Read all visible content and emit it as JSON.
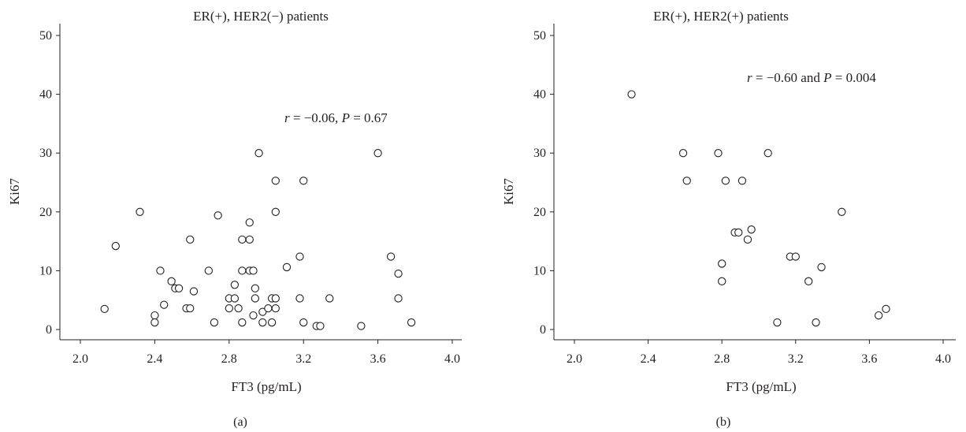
{
  "chart_data": [
    {
      "type": "scatter",
      "title": "ER(+), HER2(−) patients",
      "xlabel": "FT3 (pg/mL)",
      "ylabel": "Ki67",
      "panel_label": "(a)",
      "annotation": {
        "r": "r",
        "r_value": " = −0.06, ",
        "p": "P",
        "p_value": " = 0.67"
      },
      "xlim": [
        1.9,
        4.15
      ],
      "ylim": [
        -2,
        52
      ],
      "xticks": [
        2.0,
        2.4,
        2.8,
        3.2,
        3.6,
        4.0
      ],
      "xtick_labels": [
        "2.0",
        "2.4",
        "2.8",
        "3.2",
        "3.6",
        "4.0"
      ],
      "yticks": [
        0,
        10,
        20,
        30,
        40,
        50
      ],
      "ytick_labels": [
        "0",
        "10",
        "20",
        "30",
        "40",
        "50"
      ],
      "grid": false,
      "points": [
        [
          2.13,
          3.5
        ],
        [
          2.19,
          14.2
        ],
        [
          2.32,
          20
        ],
        [
          2.4,
          2.4
        ],
        [
          2.4,
          1.2
        ],
        [
          2.43,
          10
        ],
        [
          2.45,
          4.2
        ],
        [
          2.49,
          8.2
        ],
        [
          2.51,
          7
        ],
        [
          2.53,
          7
        ],
        [
          2.57,
          3.6
        ],
        [
          2.59,
          3.6
        ],
        [
          2.59,
          15.3
        ],
        [
          2.61,
          6.5
        ],
        [
          2.69,
          10
        ],
        [
          2.72,
          1.2
        ],
        [
          2.74,
          19.4
        ],
        [
          2.8,
          3.6
        ],
        [
          2.8,
          5.3
        ],
        [
          2.83,
          5.3
        ],
        [
          2.83,
          7.6
        ],
        [
          2.85,
          3.6
        ],
        [
          2.87,
          10
        ],
        [
          2.87,
          15.3
        ],
        [
          2.87,
          1.2
        ],
        [
          2.91,
          18.2
        ],
        [
          2.91,
          15.3
        ],
        [
          2.91,
          10
        ],
        [
          2.93,
          10
        ],
        [
          2.93,
          2.4
        ],
        [
          2.94,
          5.3
        ],
        [
          2.94,
          7
        ],
        [
          2.96,
          30
        ],
        [
          2.98,
          3
        ],
        [
          2.98,
          1.2
        ],
        [
          3.01,
          3.6
        ],
        [
          3.03,
          1.2
        ],
        [
          3.03,
          5.3
        ],
        [
          3.05,
          5.3
        ],
        [
          3.05,
          3.6
        ],
        [
          3.05,
          20
        ],
        [
          3.05,
          25.3
        ],
        [
          3.11,
          10.6
        ],
        [
          3.18,
          5.3
        ],
        [
          3.18,
          12.4
        ],
        [
          3.2,
          25.3
        ],
        [
          3.2,
          1.2
        ],
        [
          3.27,
          0.6
        ],
        [
          3.29,
          0.6
        ],
        [
          3.34,
          5.3
        ],
        [
          3.51,
          0.6
        ],
        [
          3.6,
          30
        ],
        [
          3.67,
          12.4
        ],
        [
          3.71,
          9.5
        ],
        [
          3.71,
          5.3
        ],
        [
          3.78,
          1.2
        ]
      ]
    },
    {
      "type": "scatter",
      "title": "ER(+), HER2(+) patients",
      "xlabel": "FT3 (pg/mL)",
      "ylabel": "Ki67",
      "panel_label": "(b)",
      "annotation": {
        "r": "r",
        "r_value": " = −0.60 and ",
        "p": "P",
        "p_value": " = 0.004"
      },
      "xlim": [
        1.9,
        4.15
      ],
      "ylim": [
        -2,
        52
      ],
      "xticks": [
        2.0,
        2.4,
        2.8,
        3.2,
        3.6,
        4.0
      ],
      "xtick_labels": [
        "2.0",
        "2.4",
        "2.8",
        "3.2",
        "3.6",
        "4.0"
      ],
      "yticks": [
        0,
        10,
        20,
        30,
        40,
        50
      ],
      "ytick_labels": [
        "0",
        "10",
        "20",
        "30",
        "40",
        "50"
      ],
      "grid": false,
      "points": [
        [
          2.31,
          40
        ],
        [
          2.59,
          30
        ],
        [
          2.61,
          25.3
        ],
        [
          2.78,
          30
        ],
        [
          2.8,
          11.2
        ],
        [
          2.8,
          8.2
        ],
        [
          2.82,
          25.3
        ],
        [
          2.87,
          16.5
        ],
        [
          2.89,
          16.5
        ],
        [
          2.91,
          25.3
        ],
        [
          2.94,
          15.3
        ],
        [
          2.96,
          17
        ],
        [
          3.05,
          30
        ],
        [
          3.1,
          1.2
        ],
        [
          3.17,
          12.4
        ],
        [
          3.2,
          12.4
        ],
        [
          3.27,
          8.2
        ],
        [
          3.31,
          1.2
        ],
        [
          3.34,
          10.6
        ],
        [
          3.45,
          20
        ],
        [
          3.65,
          2.4
        ],
        [
          3.69,
          3.5
        ]
      ]
    }
  ]
}
